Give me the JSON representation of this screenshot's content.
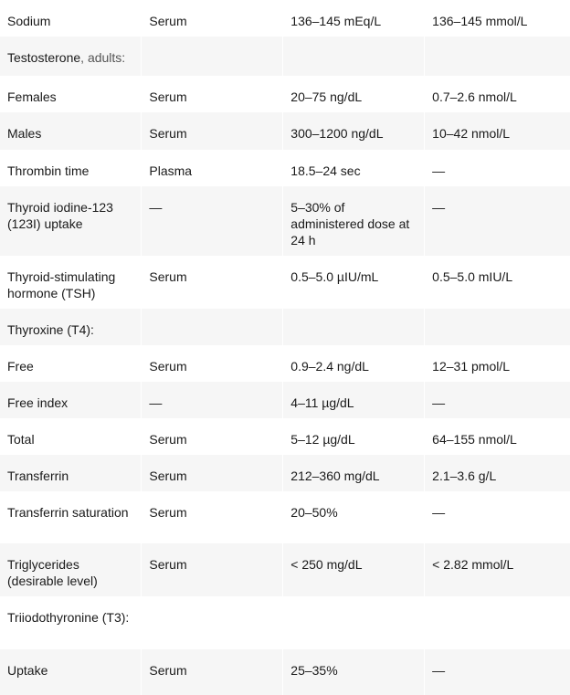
{
  "rows": [
    {
      "test": "Sodium",
      "qualifier": "",
      "specimen": "Serum",
      "conventional": "136–145 mEq/L",
      "si": "136–145 mmol/L",
      "height": 33
    },
    {
      "test": "Testosterone",
      "qualifier": ", adults:",
      "specimen": "",
      "conventional": "",
      "si": "",
      "height": 43
    },
    {
      "test": "Females",
      "qualifier": "",
      "specimen": "Serum",
      "conventional": "20–75 ng/dL",
      "si": "0.7–2.6 nmol/L",
      "height": 36
    },
    {
      "test": "Males",
      "qualifier": "",
      "specimen": "Serum",
      "conventional": "300–1200 ng/dL",
      "si": "10–42 nmol/L",
      "height": 41
    },
    {
      "test": "Thrombin time",
      "qualifier": "",
      "specimen": "Plasma",
      "conventional": "18.5–24 sec",
      "si": "—",
      "height": 38
    },
    {
      "test": "Thyroid iodine-123 (123I) uptake",
      "qualifier": "",
      "specimen": "—",
      "conventional": "5–30% of administered dose at 24 h",
      "si": "—",
      "height": 76
    },
    {
      "test": "Thyroid-stimulating hormone (TSH)",
      "qualifier": "",
      "specimen": "Serum",
      "conventional": "0.5–5.0 µIU/mL",
      "si": "0.5–5.0 mIU/L",
      "height": 58
    },
    {
      "test": "Thyroxine (T4):",
      "qualifier": "",
      "specimen": "",
      "conventional": "",
      "si": "",
      "height": 40
    },
    {
      "test": "Free",
      "qualifier": "",
      "specimen": "Serum",
      "conventional": "0.9–2.4 ng/dL",
      "si": "12–31 pmol/L",
      "height": 40
    },
    {
      "test": "Free index",
      "qualifier": "",
      "specimen": "—",
      "conventional": "4–11 µg/dL",
      "si": "—",
      "height": 40
    },
    {
      "test": "Total",
      "qualifier": "",
      "specimen": "Serum",
      "conventional": "5–12 µg/dL",
      "si": "64–155 nmol/L",
      "height": 40
    },
    {
      "test": "Transferrin",
      "qualifier": "",
      "specimen": "Serum",
      "conventional": "212–360 mg/dL",
      "si": "2.1–3.6 g/L",
      "height": 40
    },
    {
      "test": "Transferrin saturation",
      "qualifier": "",
      "specimen": "Serum",
      "conventional": "20–50%",
      "si": "—",
      "height": 57
    },
    {
      "test": "Triglycerides (desirable level)",
      "qualifier": "",
      "specimen": "Serum",
      "conventional": "< 250 mg/dL",
      "si": "< 2.82 mmol/L",
      "height": 58
    },
    {
      "test": "Triiodothyronine (T3):",
      "qualifier": "",
      "specimen": "",
      "conventional": "",
      "si": "",
      "height": 58
    },
    {
      "test": "Uptake",
      "qualifier": "",
      "specimen": "Serum",
      "conventional": "25–35%",
      "si": "—",
      "height": 50
    }
  ]
}
